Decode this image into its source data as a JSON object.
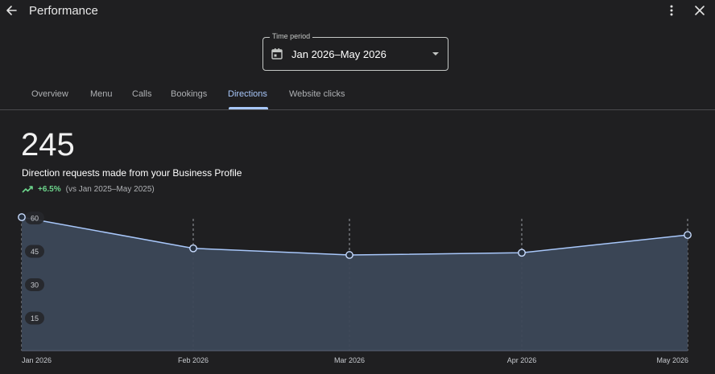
{
  "header": {
    "title": "Performance",
    "back_icon": "arrow-back-icon",
    "more_icon": "more-vert-icon",
    "close_icon": "close-icon"
  },
  "time_period": {
    "label": "Time period",
    "value": "Jan 2026–May 2026",
    "icon": "calendar-icon"
  },
  "tabs": [
    {
      "label": "Overview",
      "active": false
    },
    {
      "label": "Menu",
      "active": false
    },
    {
      "label": "Calls",
      "active": false
    },
    {
      "label": "Bookings",
      "active": false
    },
    {
      "label": "Directions",
      "active": true
    },
    {
      "label": "Website clicks",
      "active": false
    }
  ],
  "metric": {
    "value": "245",
    "label": "Direction requests made from your Business Profile",
    "trend_icon": "trending-up-icon",
    "change": "+6.5%",
    "compare": "(vs Jan 2025–May 2025)"
  },
  "colors": {
    "background": "#1f1f21",
    "accent": "#a8c7fa",
    "positive": "#6dd58c",
    "area_fill": "#3c4859",
    "line": "#a8c7fa"
  },
  "chart_data": {
    "type": "area",
    "categories": [
      "Jan 2026",
      "Feb 2026",
      "Mar 2026",
      "Apr 2026",
      "May 2026"
    ],
    "values": [
      60,
      46,
      43,
      44,
      52
    ],
    "yticks": [
      "60",
      "45",
      "30",
      "15"
    ],
    "ylim": [
      0,
      60
    ],
    "grid": "vertical dashed",
    "xlabel": "",
    "ylabel": ""
  }
}
